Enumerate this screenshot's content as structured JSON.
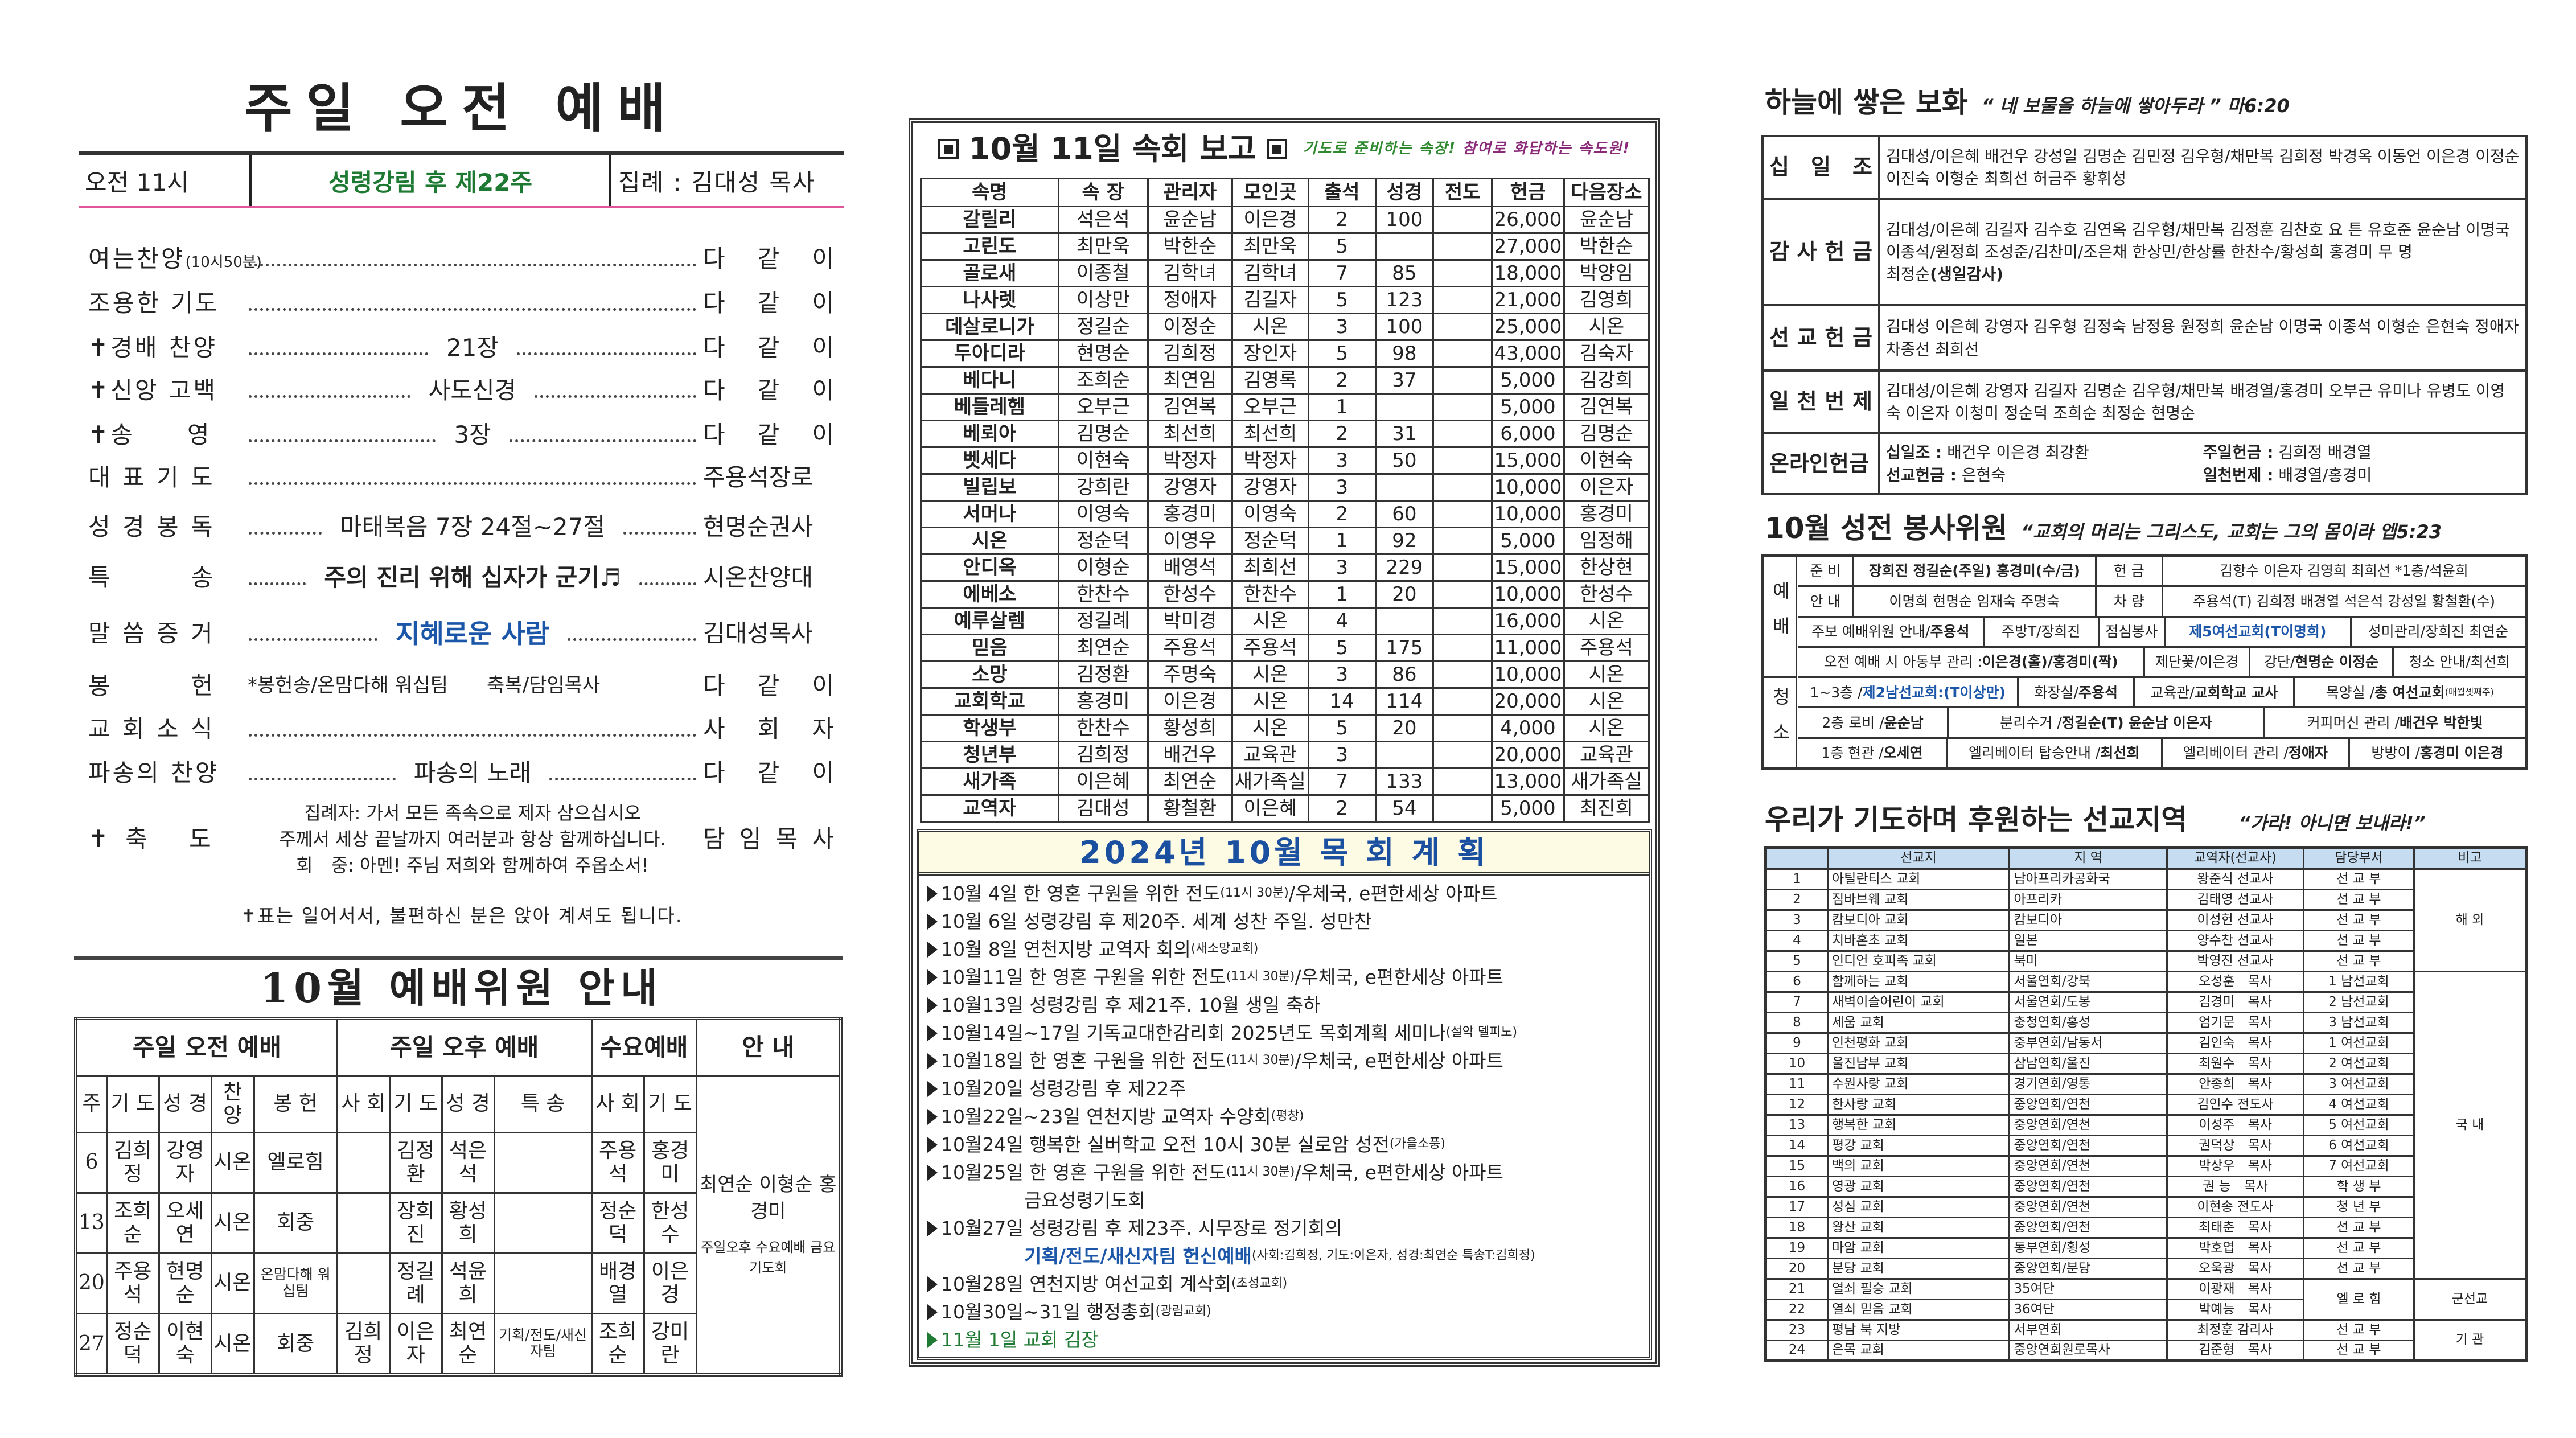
{
  "left": {
    "title": "주일 오전 예배",
    "header": {
      "time": "오전 11시",
      "week": "성령강림 후 제22주",
      "presider": "집례 : 김대성 목사"
    },
    "order": [
      {
        "label": "여는찬양",
        "label_note": "(10시50분)",
        "middle": "",
        "leader": "다 같 이"
      },
      {
        "label": "조용한 기도",
        "middle": "",
        "leader": "다 같 이"
      },
      {
        "label": "✝경배 찬양",
        "middle": "21장",
        "leader": "다 같 이"
      },
      {
        "label": "✝신앙 고백",
        "middle": "사도신경",
        "leader": "다 같 이"
      },
      {
        "label": "✝송　　영",
        "middle": "3장",
        "leader": "다 같 이"
      },
      {
        "label": "대 표 기 도",
        "middle": "",
        "leader": "주용석장로"
      },
      {
        "label": "성 경 봉 독",
        "middle": "마태복음 7장 24절~27절",
        "leader": "현명순권사"
      },
      {
        "label": "특　　　송",
        "middle": "주의 진리 위해 십자가 군기♬",
        "middle_style": "bold",
        "leader": "시온찬양대"
      },
      {
        "label": "말 씀 증 거",
        "middle": "지혜로운 사람",
        "middle_style": "blue",
        "leader": "김대성목사"
      },
      {
        "label": "봉　　　헌",
        "middle": "*봉헌송/온맘다해 워십팀　　축복/담임목사",
        "leader": "다 같 이",
        "nodots": true
      },
      {
        "label": "교 회 소 식",
        "middle": "",
        "leader": "사 회 자"
      },
      {
        "label": "파송의 찬양",
        "middle": "파송의 노래",
        "leader": "다 같 이"
      }
    ],
    "benediction": {
      "label": "✝축 도",
      "lines": [
        "집례자: 가서 모든 족속으로 제자 삼으십시오",
        "주께서 세상 끝날까지 여러분과 항상 함께하십니다.",
        "회　중: 아멘! 주님 저희와 함께하여 주옵소서!"
      ],
      "leader": "담 임 목 사"
    },
    "note": "✝표는 일어서서, 불편하신 분은 앉아 계셔도 됩니다.",
    "committee": {
      "title": "10월 예배위원 안내",
      "groups": [
        "주일 오전 예배",
        "주일 오후 예배",
        "수요예배",
        "안 내"
      ],
      "subheaders": [
        "주",
        "기 도",
        "성 경",
        "찬 양",
        "봉 헌",
        "사 회",
        "기 도",
        "성 경",
        "특 송",
        "사 회",
        "기 도"
      ],
      "rows": [
        [
          "6",
          "김희정",
          "강영자",
          "시온",
          "엘로힘",
          "",
          "김정환",
          "석은석",
          "",
          "주용석",
          "홍경미"
        ],
        [
          "13",
          "조희순",
          "오세연",
          "시온",
          "회중",
          "",
          "장희진",
          "황성희",
          "",
          "정순덕",
          "한성수"
        ],
        [
          "20",
          "주용석",
          "현명순",
          "시온",
          "온맘다해 워십팀",
          "",
          "정길례",
          "석윤희",
          "",
          "배경열",
          "이은경"
        ],
        [
          "27",
          "정순덕",
          "이현숙",
          "시온",
          "회중",
          "김희정",
          "이은자",
          "최연순",
          "기획/전도/새신자팀",
          "조희순",
          "강미란"
        ]
      ],
      "guide_names": "최연순 이형순 홍경미",
      "guide_note": "주일오후 수요예배 금요기도회"
    }
  },
  "middle": {
    "title": "10월 11일 속회 보고",
    "tagline_green": "기도로 준비하는 속장!",
    "tagline_purple": "참여로 화답하는 속도원!",
    "columns": [
      "속명",
      "속 장",
      "관리자",
      "모인곳",
      "출석",
      "성경",
      "전도",
      "헌금",
      "다음장소"
    ],
    "rows": [
      [
        "갈릴리",
        "석은석",
        "윤순남",
        "이은경",
        "2",
        "100",
        "",
        "26,000",
        "윤순남"
      ],
      [
        "고린도",
        "최만욱",
        "박한순",
        "최만욱",
        "5",
        "",
        "",
        "27,000",
        "박한순"
      ],
      [
        "골로새",
        "이종철",
        "김학녀",
        "김학녀",
        "7",
        "85",
        "",
        "18,000",
        "박양임"
      ],
      [
        "나사렛",
        "이상만",
        "정애자",
        "김길자",
        "5",
        "123",
        "",
        "21,000",
        "김영희"
      ],
      [
        "데살로니가",
        "정길순",
        "이정순",
        "시온",
        "3",
        "100",
        "",
        "25,000",
        "시온"
      ],
      [
        "두아디라",
        "현명순",
        "김희정",
        "장인자",
        "5",
        "98",
        "",
        "43,000",
        "김숙자"
      ],
      [
        "베다니",
        "조희순",
        "최연임",
        "김영록",
        "2",
        "37",
        "",
        "5,000",
        "김강희"
      ],
      [
        "베들레헴",
        "오부근",
        "김연복",
        "오부근",
        "1",
        "",
        "",
        "5,000",
        "김연복"
      ],
      [
        "베뢰아",
        "김명순",
        "최선희",
        "최선희",
        "2",
        "31",
        "",
        "6,000",
        "김명순"
      ],
      [
        "벳세다",
        "이현숙",
        "박정자",
        "박정자",
        "3",
        "50",
        "",
        "15,000",
        "이현숙"
      ],
      [
        "빌립보",
        "강희란",
        "강영자",
        "강영자",
        "3",
        "",
        "",
        "10,000",
        "이은자"
      ],
      [
        "서머나",
        "이영숙",
        "홍경미",
        "이영숙",
        "2",
        "60",
        "",
        "10,000",
        "홍경미"
      ],
      [
        "시온",
        "정순덕",
        "이영우",
        "정순덕",
        "1",
        "92",
        "",
        "5,000",
        "임정해"
      ],
      [
        "안디옥",
        "이형순",
        "배영석",
        "최희선",
        "3",
        "229",
        "",
        "15,000",
        "한상현"
      ],
      [
        "에베소",
        "한찬수",
        "한성수",
        "한찬수",
        "1",
        "20",
        "",
        "10,000",
        "한성수"
      ],
      [
        "예루살렘",
        "정길례",
        "박미경",
        "시온",
        "4",
        "",
        "",
        "16,000",
        "시온"
      ],
      [
        "믿음",
        "최연순",
        "주용석",
        "주용석",
        "5",
        "175",
        "",
        "11,000",
        "주용석"
      ],
      [
        "소망",
        "김정환",
        "주명숙",
        "시온",
        "3",
        "86",
        "",
        "10,000",
        "시온"
      ],
      [
        "교회학교",
        "홍경미",
        "이은경",
        "시온",
        "14",
        "114",
        "",
        "20,000",
        "시온"
      ],
      [
        "학생부",
        "한찬수",
        "황성희",
        "시온",
        "5",
        "20",
        "",
        "4,000",
        "시온"
      ],
      [
        "청년부",
        "김희정",
        "배건우",
        "교육관",
        "3",
        "",
        "",
        "20,000",
        "교육관"
      ],
      [
        "새가족",
        "이은혜",
        "최연순",
        "새가족실",
        "7",
        "133",
        "",
        "13,000",
        "새가족실"
      ],
      [
        "교역자",
        "김대성",
        "황철환",
        "이은혜",
        "2",
        "54",
        "",
        "5,000",
        "최진희"
      ]
    ],
    "plan": {
      "title": "2024년 10월  목 회 계 획",
      "items": [
        {
          "segs": [
            {
              "t": "10월 4일 한 영혼 구원을 위한 전도"
            },
            {
              "t": "(11시 30분)",
              "s": "small"
            },
            {
              "t": "/우체국, e편한세상 아파트"
            }
          ]
        },
        {
          "segs": [
            {
              "t": "10월 6일 성령강림 후 제20주. 세계 성찬 주일. 성만찬"
            }
          ]
        },
        {
          "segs": [
            {
              "t": "10월 8일 연천지방 교역자 회의"
            },
            {
              "t": "(새소망교회)",
              "s": "small"
            }
          ]
        },
        {
          "segs": [
            {
              "t": "10월11일 한 영혼 구원을 위한 전도"
            },
            {
              "t": "(11시 30분)",
              "s": "small"
            },
            {
              "t": "/우체국, e편한세상 아파트"
            }
          ]
        },
        {
          "segs": [
            {
              "t": "10월13일 성령강림 후 제21주. 10월 생일 축하"
            }
          ]
        },
        {
          "segs": [
            {
              "t": "10월14일~17일 기독교대한감리회 2025년도 목회계획 세미나"
            },
            {
              "t": "(설악 델피노)",
              "s": "small"
            }
          ]
        },
        {
          "segs": [
            {
              "t": "10월18일 한 영혼 구원을 위한 전도"
            },
            {
              "t": "(11시 30분)",
              "s": "small"
            },
            {
              "t": "/우체국, e편한세상 아파트"
            }
          ]
        },
        {
          "segs": [
            {
              "t": "10월20일 성령강림 후 제22주"
            }
          ]
        },
        {
          "segs": [
            {
              "t": "10월22일~23일 연천지방 교역자 수양회"
            },
            {
              "t": "(평창)",
              "s": "small"
            }
          ]
        },
        {
          "segs": [
            {
              "t": "10월24일 행복한 실버학교 오전 10시 30분 실로암 성전"
            },
            {
              "t": "(가을소풍)",
              "s": "small"
            }
          ]
        },
        {
          "segs": [
            {
              "t": "10월25일 한 영혼 구원을 위한 전도"
            },
            {
              "t": "(11시 30분)",
              "s": "small"
            },
            {
              "t": "/우체국, e편한세상 아파트"
            }
          ]
        },
        {
          "cont": true,
          "segs": [
            {
              "t": "금요성령기도회"
            }
          ]
        },
        {
          "segs": [
            {
              "t": "10월27일 성령강림 후 제23주. 시무장로 정기회의"
            }
          ]
        },
        {
          "cont": true,
          "segs": [
            {
              "t": "기획/전도/새신자팀  헌신예배",
              "s": "blue"
            },
            {
              "t": "(사회:김희정, 기도:이은자, 성경:최연순 특송T:김희정)",
              "s": "small"
            }
          ]
        },
        {
          "segs": [
            {
              "t": "10월28일 연천지방 여선교회 계삭회"
            },
            {
              "t": "(초성교회)",
              "s": "small"
            }
          ]
        },
        {
          "segs": [
            {
              "t": "10월30일~31일 행정총회"
            },
            {
              "t": "(광림교회)",
              "s": "small"
            }
          ]
        },
        {
          "green": true,
          "segs": [
            {
              "t": "11월 1일 교회 김장"
            }
          ]
        }
      ]
    }
  },
  "right": {
    "offering": {
      "title": "하늘에 쌓은 보화",
      "verse": "“ 네 보물을 하늘에 쌓아두라 ” 마6:20",
      "rows": [
        {
          "label": "십 일 조",
          "text": "김대성/이은혜 배건우 강성일 김명순 김민정 김우형/채만복 김희정 박경옥 이동언 이은경 이정순 이진숙 이형순 최희선 허금주 황휘성"
        },
        {
          "label": "감 사 헌 금",
          "text": "김대성/이은혜 김길자 김수호 김연옥 김우형/채만복 김정훈 김찬호 요 튼 유호준 윤순남 이명국 이종석/원정희 조성준/김찬미/조은채 한상민/한상률 한찬수/황성희 홍경미 무 명",
          "extra_name": "최정순",
          "extra_note": "(생일감사)"
        },
        {
          "label": "선 교 헌 금",
          "text": "김대성 이은혜 강영자 김우형 김정숙 남정용 원정희 윤순남 이명국 이종석 이형순 은현숙 정애자 차종선 최희선"
        },
        {
          "label": "일 천 번 제",
          "text": "김대성/이은혜 강영자 김길자 김명순 김우형/채만복 배경열/홍경미 오부근 유미나 유병도 이영숙 이은자 이청미 정순덕 조희순 최정순 현명순"
        }
      ],
      "online": {
        "label": "온라인헌금",
        "items": [
          {
            "k": "십일조 :",
            "v": " 배건우 이은경 최강환"
          },
          {
            "k": "주일헌금 :",
            "v": " 김희정 배경열"
          },
          {
            "k": "선교헌금 :",
            "v": " 은현숙"
          },
          {
            "k": "일천번제 :",
            "v": " 배경열/홍경미"
          }
        ]
      }
    },
    "volunteers": {
      "title": "10월 성전 봉사위원",
      "verse": "“교회의 머리는 그리스도, 교회는 그의 몸이라 엡5:23",
      "groups": [
        "예배",
        "청소"
      ],
      "rows": [
        [
          [
            {
              "t": "준 비"
            }
          ],
          [
            {
              "t": "장희진  정길순(주일)  홍경미(수/금)",
              "s": "bold"
            }
          ],
          [
            {
              "t": "헌  금"
            }
          ],
          [
            {
              "t": "김항수 이은자 김영희 최희선 *1층/석윤희"
            }
          ]
        ],
        [
          [
            {
              "t": "안 내"
            }
          ],
          [
            {
              "t": "이명희 현명순 임재숙 주명숙"
            }
          ],
          [
            {
              "t": "차  량"
            }
          ],
          [
            {
              "t": "주용석(T) 김희정 배경열 석은석 강성일 황철환(수)"
            }
          ]
        ],
        [
          [
            {
              "t": "주보 예배위원 안내/"
            },
            {
              "t": "주용석",
              "s": "bold"
            }
          ],
          [
            {
              "t": "주방T/장희진"
            }
          ],
          [
            {
              "t": "점심봉사"
            }
          ],
          [
            {
              "t": "제5여선교회(T이명희)",
              "s": "blue"
            }
          ],
          [
            {
              "t": "성미관리/장희진 최연순"
            }
          ]
        ],
        [
          [
            {
              "t": "오전 예배 시 아동부 관리 : "
            },
            {
              "t": "이은경(홀)/홍경미(짝)",
              "s": "bold"
            }
          ],
          [
            {
              "t": "제단꽃/이은경"
            }
          ],
          [
            {
              "t": "강단/"
            },
            {
              "t": "현명순 이정순",
              "s": "bold"
            }
          ],
          [
            {
              "t": "청소 안내/최선희"
            }
          ]
        ],
        [
          [
            {
              "t": "1~3층 / "
            },
            {
              "t": "제2남선교회:(T이상만)",
              "s": "blue"
            }
          ],
          [
            {
              "t": "화장실/"
            },
            {
              "t": "주용석",
              "s": "bold"
            }
          ],
          [
            {
              "t": "교육관/"
            },
            {
              "t": "교회학교 교사",
              "s": "bold"
            }
          ],
          [
            {
              "t": "목양실 / "
            },
            {
              "t": "총 여선교회",
              "s": "bold"
            },
            {
              "t": "(매월셋째주)",
              "s": "tiny"
            }
          ]
        ],
        [
          [
            {
              "t": "2층 로비 / "
            },
            {
              "t": "윤순남",
              "s": "bold"
            }
          ],
          [
            {
              "t": "분리수거 / "
            },
            {
              "t": "정길순(T) 윤순남 이은자",
              "s": "bold"
            }
          ],
          [
            {
              "t": "커피머신 관리 / "
            },
            {
              "t": "배건우 박한빛",
              "s": "bold"
            }
          ]
        ],
        [
          [
            {
              "t": "1층 현관 / "
            },
            {
              "t": "오세연",
              "s": "bold"
            }
          ],
          [
            {
              "t": "엘리베이터 탑승안내 / "
            },
            {
              "t": "최선희",
              "s": "bold"
            }
          ],
          [
            {
              "t": "엘리베이터 관리 / "
            },
            {
              "t": "정애자",
              "s": "bold"
            }
          ],
          [
            {
              "t": "방방이 / "
            },
            {
              "t": "홍경미 이은경",
              "s": "bold"
            }
          ]
        ]
      ]
    },
    "missions": {
      "title": "우리가 기도하며 후원하는 선교지역",
      "verse": "“가라! 아니면 보내라!”",
      "columns": [
        "",
        "선교지",
        "지 역",
        "교역자(선교사)",
        "담당부서",
        "비고"
      ],
      "rows": [
        [
          "1",
          "아틸란티스 교회",
          "남아프리카공화국",
          "왕준식 선교사",
          "선 교 부"
        ],
        [
          "2",
          "짐바브웨 교회",
          "아프리카",
          "김태영 선교사",
          "선 교 부"
        ],
        [
          "3",
          "캄보디아 교회",
          "캄보디아",
          "이성헌 선교사",
          "선 교 부"
        ],
        [
          "4",
          "치바혼초 교회",
          "일본",
          "양수찬 선교사",
          "선 교 부"
        ],
        [
          "5",
          "인디언 호피족 교회",
          "북미",
          "박영진 선교사",
          "선 교 부"
        ],
        [
          "6",
          "함께하는 교회",
          "서울연회/강북",
          "오성훈　목사",
          "1 남선교회"
        ],
        [
          "7",
          "새벽이슬어린이 교회",
          "서울연회/도봉",
          "김경미　목사",
          "2 남선교회"
        ],
        [
          "8",
          "세움 교회",
          "충청연회/홍성",
          "엄기문　목사",
          "3 남선교회"
        ],
        [
          "9",
          "인천평화 교회",
          "중부연회/남동서",
          "김인숙　목사",
          "1 여선교회"
        ],
        [
          "10",
          "울진남부 교회",
          "삼남연회/울진",
          "최원수　목사",
          "2 여선교회"
        ],
        [
          "11",
          "수원사랑 교회",
          "경기연회/영통",
          "안종희　목사",
          "3 여선교회"
        ],
        [
          "12",
          "한사랑 교회",
          "중앙연회/연천",
          "김인수 전도사",
          "4 여선교회"
        ],
        [
          "13",
          "행복한 교회",
          "중앙연회/연천",
          "이성주　목사",
          "5 여선교회"
        ],
        [
          "14",
          "평강 교회",
          "중앙연회/연천",
          "권덕상　목사",
          "6 여선교회"
        ],
        [
          "15",
          "백의 교회",
          "중앙연회/연천",
          "박상우　목사",
          "7 여선교회"
        ],
        [
          "16",
          "영광 교회",
          "중앙연회/연천",
          "권 능　목사",
          "학 생 부"
        ],
        [
          "17",
          "성심 교회",
          "중앙연회/연천",
          "이현송 전도사",
          "청 년 부"
        ],
        [
          "18",
          "왕산 교회",
          "중앙연회/연천",
          "최태춘　목사",
          "선 교 부"
        ],
        [
          "19",
          "마암 교회",
          "동부연회/횡성",
          "박호엽　목사",
          "선 교 부"
        ],
        [
          "20",
          "분당 교회",
          "중앙연회/분당",
          "오욱광　목사",
          "선 교 부"
        ],
        [
          "21",
          "열쇠 필승 교회",
          "35여단",
          "이광재　목사",
          "엘 로 힘"
        ],
        [
          "22",
          "열쇠 믿음 교회",
          "36여단",
          "박예능　목사",
          ""
        ],
        [
          "23",
          "평남 북 지방",
          "서부연회",
          "최정훈 감리사",
          "선 교 부"
        ],
        [
          "24",
          "은목 교회",
          "중앙연회원로목사",
          "김준형　목사",
          "선 교 부"
        ]
      ],
      "remarks": [
        "해 외",
        "국 내",
        "군선교",
        "기 관"
      ]
    }
  },
  "colors": {
    "green": "#1e7a33",
    "blue": "#1b56a8",
    "pink_rule": "#e0559a",
    "purple": "#8a2a78",
    "header_blue": "#c5dcf1",
    "plan_bg": "#fdfbe4"
  }
}
